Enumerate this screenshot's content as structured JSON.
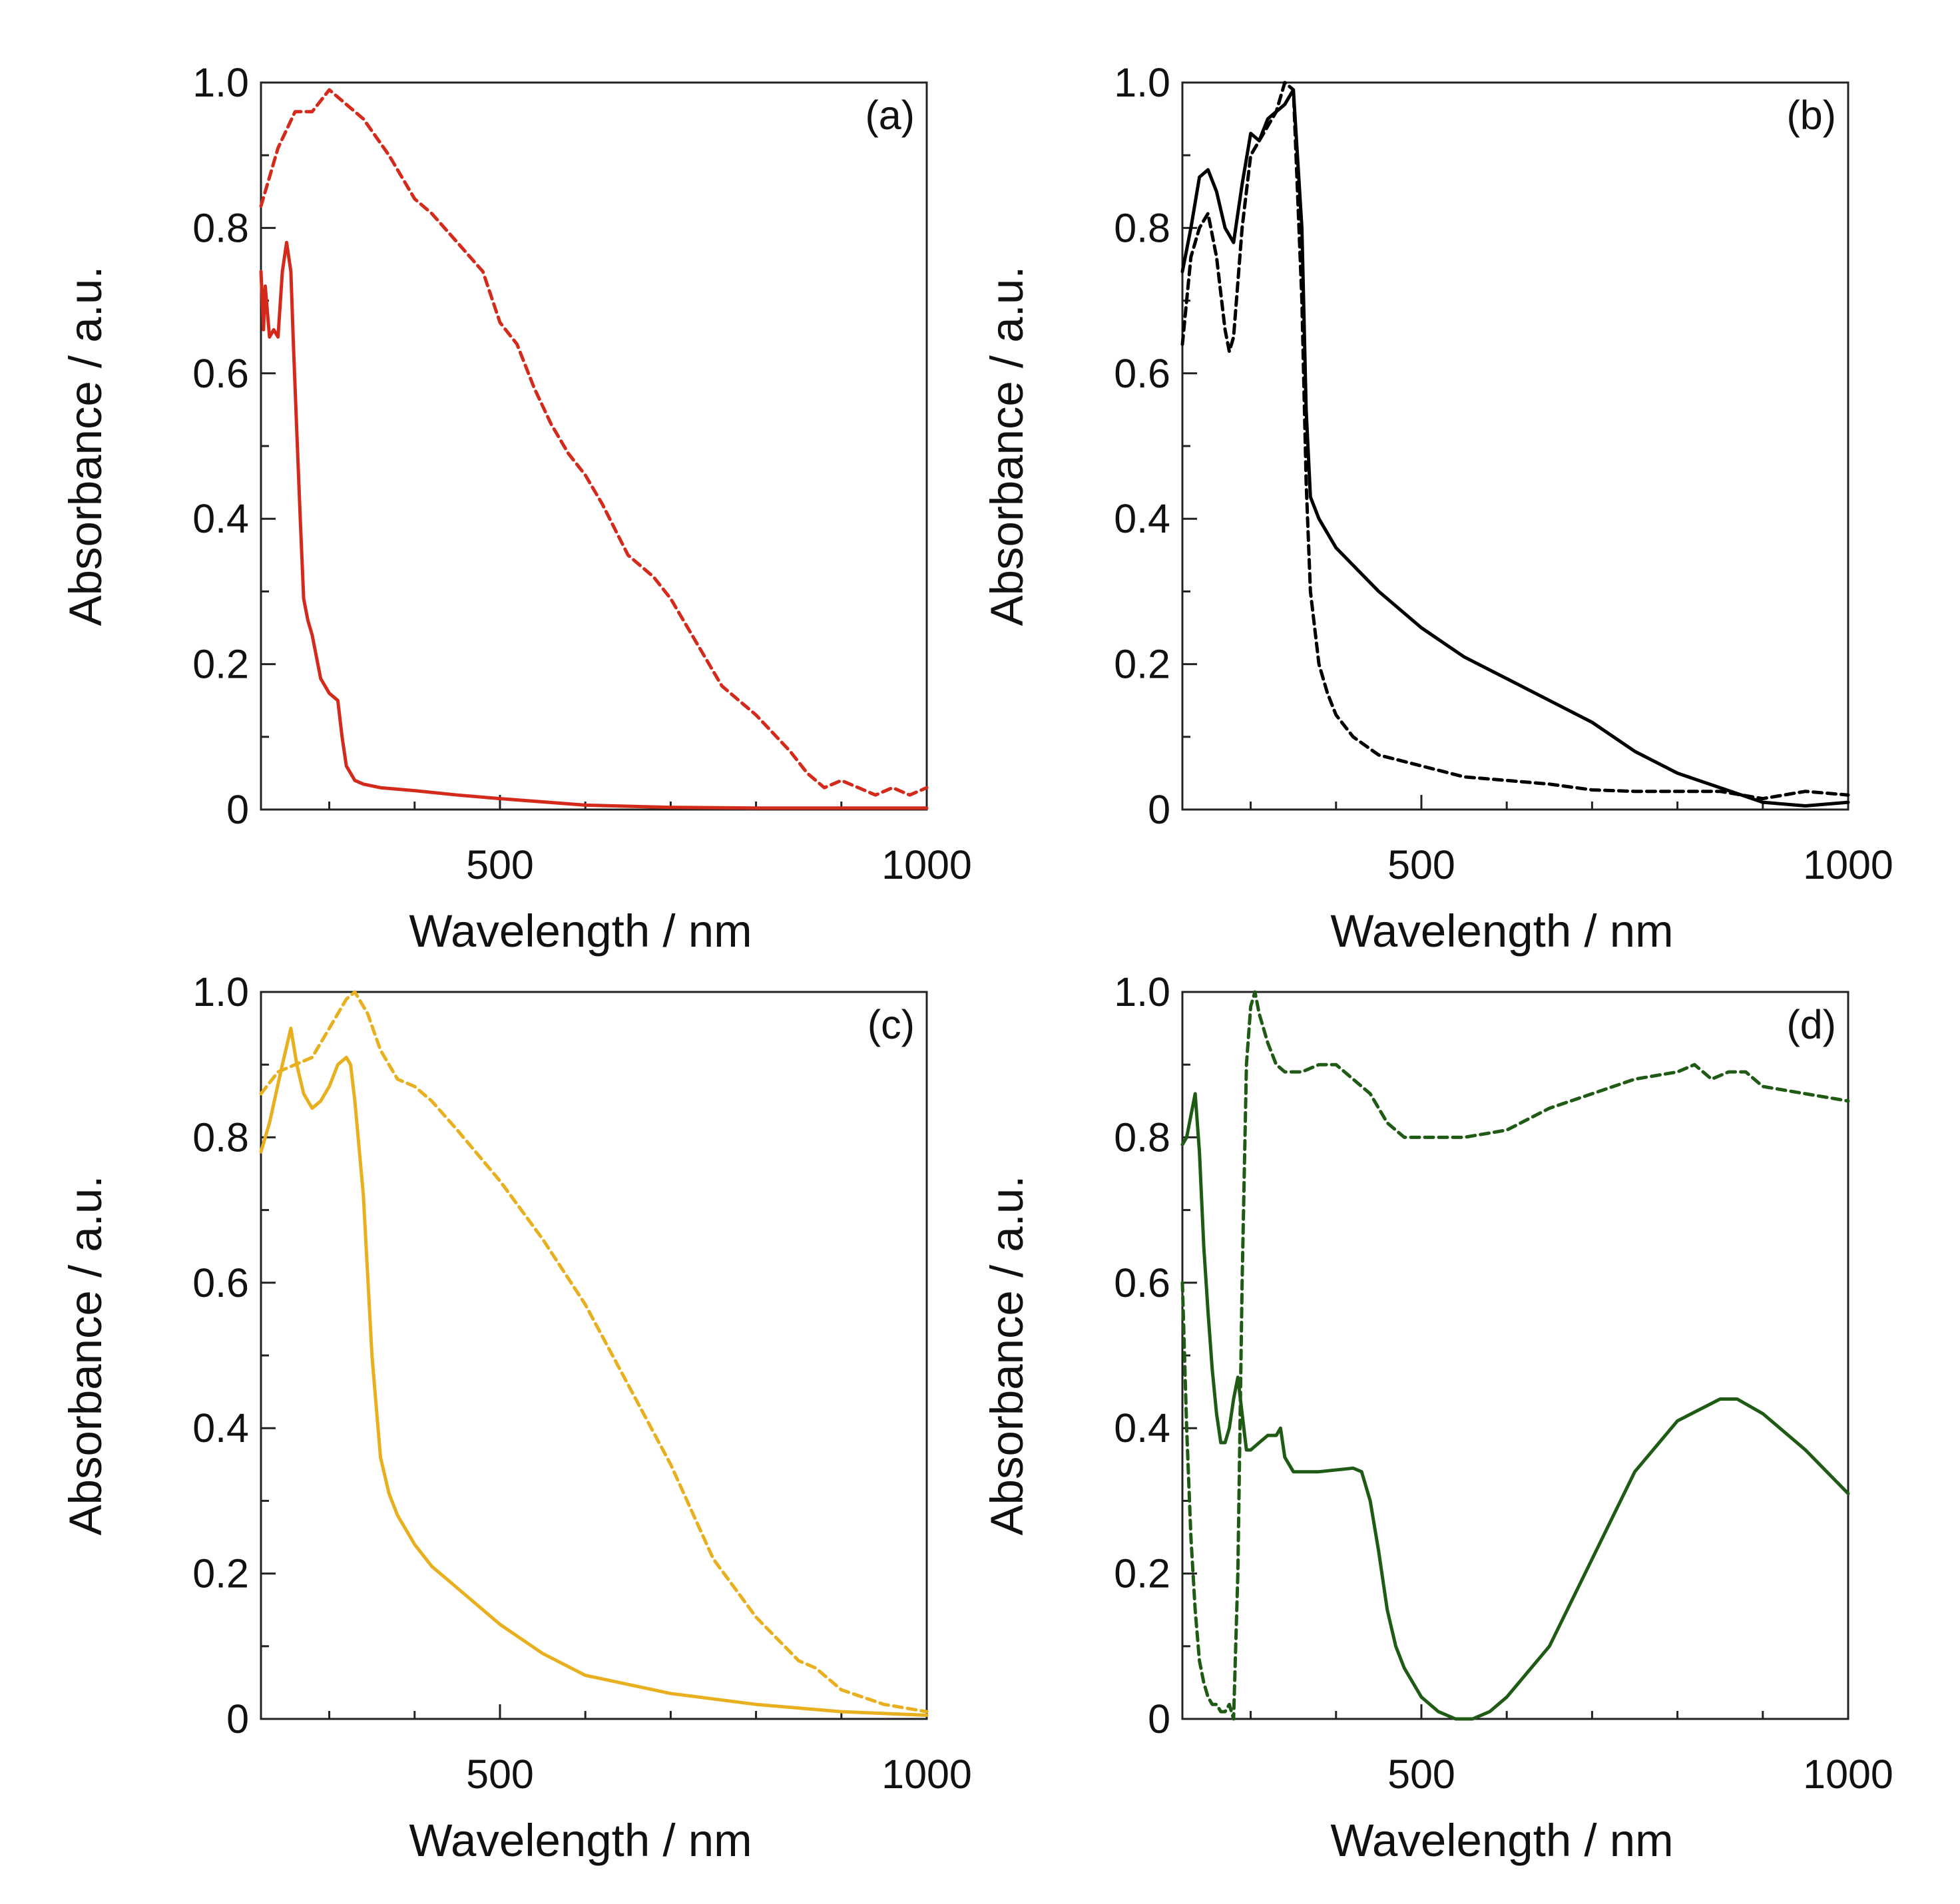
{
  "colors": {
    "a": "#d42a1c",
    "b": "#000000",
    "c": "#e8b01f",
    "d": "#1f5b14"
  },
  "chart_data": [
    {
      "type": "line",
      "panel_label": "(a)",
      "xlabel": "Wavelength / nm",
      "ylabel": "Absorbance / a.u.",
      "xlim": [
        220,
        1000
      ],
      "ylim": [
        0,
        1.0
      ],
      "xticks": [
        500,
        1000
      ],
      "yticks": [
        0,
        0.2,
        0.4,
        0.6,
        0.8,
        1.0
      ],
      "yticklabels": [
        "0",
        "0.2",
        "0.4",
        "0.6",
        "0.8",
        "1.0"
      ],
      "series": [
        {
          "style": "solid",
          "color": "#d42a1c",
          "x": [
            220,
            223,
            225,
            230,
            235,
            240,
            245,
            250,
            255,
            258,
            262,
            266,
            270,
            275,
            280,
            290,
            300,
            310,
            315,
            320,
            330,
            340,
            360,
            400,
            450,
            500,
            600,
            700,
            800,
            900,
            1000
          ],
          "y": [
            0.74,
            0.66,
            0.72,
            0.65,
            0.66,
            0.65,
            0.74,
            0.78,
            0.74,
            0.64,
            0.52,
            0.4,
            0.29,
            0.26,
            0.24,
            0.18,
            0.16,
            0.15,
            0.1,
            0.06,
            0.04,
            0.035,
            0.03,
            0.026,
            0.02,
            0.015,
            0.006,
            0.003,
            0.002,
            0.002,
            0.002
          ]
        },
        {
          "style": "dashed",
          "color": "#d42a1c",
          "x": [
            220,
            240,
            260,
            280,
            300,
            320,
            340,
            370,
            400,
            420,
            450,
            480,
            500,
            520,
            540,
            560,
            580,
            600,
            620,
            650,
            680,
            700,
            730,
            760,
            800,
            840,
            860,
            880,
            900,
            920,
            940,
            960,
            980,
            1000
          ],
          "y": [
            0.83,
            0.91,
            0.96,
            0.96,
            0.99,
            0.97,
            0.95,
            0.9,
            0.84,
            0.82,
            0.78,
            0.74,
            0.67,
            0.64,
            0.58,
            0.53,
            0.49,
            0.46,
            0.42,
            0.35,
            0.32,
            0.29,
            0.23,
            0.17,
            0.13,
            0.08,
            0.05,
            0.03,
            0.04,
            0.03,
            0.02,
            0.03,
            0.02,
            0.03
          ]
        }
      ]
    },
    {
      "type": "line",
      "panel_label": "(b)",
      "xlabel": "Wavelength / nm",
      "ylabel": "Absorbance / a.u.",
      "xlim": [
        220,
        1000
      ],
      "ylim": [
        0,
        1.0
      ],
      "xticks": [
        500,
        1000
      ],
      "yticks": [
        0,
        0.2,
        0.4,
        0.6,
        0.8,
        1.0
      ],
      "yticklabels": [
        "0",
        "0.2",
        "0.4",
        "0.6",
        "0.8",
        "1.0"
      ],
      "series": [
        {
          "style": "solid",
          "color": "#000000",
          "x": [
            220,
            230,
            240,
            250,
            260,
            270,
            280,
            290,
            300,
            310,
            320,
            330,
            340,
            350,
            360,
            365,
            370,
            380,
            400,
            450,
            500,
            550,
            600,
            650,
            700,
            750,
            800,
            850,
            900,
            950,
            1000
          ],
          "y": [
            0.74,
            0.8,
            0.87,
            0.88,
            0.85,
            0.8,
            0.78,
            0.86,
            0.93,
            0.92,
            0.95,
            0.96,
            0.97,
            0.99,
            0.8,
            0.55,
            0.43,
            0.4,
            0.36,
            0.3,
            0.25,
            0.21,
            0.18,
            0.15,
            0.12,
            0.08,
            0.05,
            0.03,
            0.01,
            0.005,
            0.01
          ]
        },
        {
          "style": "dashed",
          "color": "#000000",
          "x": [
            220,
            230,
            240,
            250,
            260,
            270,
            275,
            280,
            290,
            300,
            310,
            320,
            330,
            340,
            350,
            360,
            365,
            370,
            380,
            390,
            400,
            420,
            450,
            500,
            550,
            600,
            650,
            700,
            750,
            800,
            850,
            900,
            950,
            1000
          ],
          "y": [
            0.64,
            0.76,
            0.8,
            0.82,
            0.76,
            0.66,
            0.63,
            0.65,
            0.8,
            0.9,
            0.92,
            0.94,
            0.96,
            1.0,
            0.99,
            0.7,
            0.45,
            0.3,
            0.2,
            0.16,
            0.13,
            0.1,
            0.075,
            0.06,
            0.045,
            0.04,
            0.035,
            0.027,
            0.025,
            0.025,
            0.025,
            0.015,
            0.025,
            0.02
          ]
        }
      ]
    },
    {
      "type": "line",
      "panel_label": "(c)",
      "xlabel": "Wavelength / nm",
      "ylabel": "Absorbance / a.u.",
      "xlim": [
        220,
        1000
      ],
      "ylim": [
        0,
        1.0
      ],
      "xticks": [
        500,
        1000
      ],
      "yticks": [
        0,
        0.2,
        0.4,
        0.6,
        0.8,
        1.0
      ],
      "yticklabels": [
        "0",
        "0.2",
        "0.4",
        "0.6",
        "0.8",
        "1.0"
      ],
      "series": [
        {
          "style": "solid",
          "color": "#e8b01f",
          "x": [
            220,
            230,
            245,
            255,
            262,
            270,
            280,
            290,
            300,
            310,
            320,
            325,
            330,
            340,
            350,
            360,
            370,
            380,
            400,
            420,
            450,
            500,
            550,
            600,
            700,
            800,
            900,
            1000
          ],
          "y": [
            0.78,
            0.82,
            0.9,
            0.95,
            0.9,
            0.86,
            0.84,
            0.85,
            0.87,
            0.9,
            0.91,
            0.9,
            0.85,
            0.72,
            0.5,
            0.36,
            0.31,
            0.28,
            0.24,
            0.21,
            0.18,
            0.13,
            0.09,
            0.06,
            0.035,
            0.02,
            0.01,
            0.005
          ]
        },
        {
          "style": "dashed",
          "color": "#e8b01f",
          "x": [
            220,
            240,
            260,
            280,
            300,
            320,
            330,
            345,
            360,
            380,
            400,
            420,
            450,
            500,
            550,
            600,
            650,
            700,
            750,
            800,
            850,
            870,
            900,
            950,
            1000
          ],
          "y": [
            0.86,
            0.89,
            0.9,
            0.91,
            0.95,
            0.99,
            1.0,
            0.97,
            0.92,
            0.88,
            0.87,
            0.85,
            0.81,
            0.74,
            0.66,
            0.57,
            0.46,
            0.35,
            0.22,
            0.14,
            0.08,
            0.07,
            0.04,
            0.02,
            0.01
          ]
        }
      ]
    },
    {
      "type": "line",
      "panel_label": "(d)",
      "xlabel": "Wavelength / nm",
      "ylabel": "Absorbance / a.u.",
      "xlim": [
        220,
        1000
      ],
      "ylim": [
        0,
        1.0
      ],
      "xticks": [
        500,
        1000
      ],
      "yticks": [
        0,
        0.2,
        0.4,
        0.6,
        0.8,
        1.0
      ],
      "yticklabels": [
        "0",
        "0.2",
        "0.4",
        "0.6",
        "0.8",
        "1.0"
      ],
      "series": [
        {
          "style": "solid",
          "color": "#1f5b14",
          "x": [
            220,
            225,
            230,
            235,
            240,
            245,
            250,
            255,
            260,
            265,
            270,
            275,
            280,
            285,
            290,
            295,
            300,
            310,
            320,
            330,
            335,
            340,
            350,
            380,
            420,
            430,
            440,
            450,
            460,
            470,
            480,
            500,
            520,
            540,
            560,
            580,
            600,
            650,
            700,
            750,
            800,
            850,
            870,
            900,
            950,
            1000
          ],
          "y": [
            0.79,
            0.8,
            0.83,
            0.86,
            0.78,
            0.65,
            0.56,
            0.48,
            0.42,
            0.38,
            0.38,
            0.4,
            0.44,
            0.47,
            0.42,
            0.37,
            0.37,
            0.38,
            0.39,
            0.39,
            0.4,
            0.36,
            0.34,
            0.34,
            0.345,
            0.34,
            0.3,
            0.23,
            0.15,
            0.1,
            0.07,
            0.03,
            0.01,
            0.0,
            0.0,
            0.01,
            0.03,
            0.1,
            0.22,
            0.34,
            0.41,
            0.44,
            0.44,
            0.42,
            0.37,
            0.31
          ]
        },
        {
          "style": "dashed",
          "color": "#1f5b14",
          "x": [
            220,
            225,
            230,
            235,
            240,
            245,
            250,
            255,
            260,
            265,
            270,
            275,
            280,
            285,
            290,
            295,
            300,
            305,
            310,
            320,
            330,
            340,
            360,
            380,
            400,
            420,
            440,
            460,
            480,
            500,
            550,
            600,
            650,
            700,
            750,
            800,
            820,
            840,
            860,
            880,
            900,
            950,
            1000
          ],
          "y": [
            0.6,
            0.4,
            0.25,
            0.15,
            0.08,
            0.05,
            0.03,
            0.02,
            0.02,
            0.01,
            0.01,
            0.02,
            0.0,
            0.2,
            0.6,
            0.9,
            0.98,
            1.0,
            0.97,
            0.93,
            0.9,
            0.89,
            0.89,
            0.9,
            0.9,
            0.88,
            0.86,
            0.82,
            0.8,
            0.8,
            0.8,
            0.81,
            0.84,
            0.86,
            0.88,
            0.89,
            0.9,
            0.88,
            0.89,
            0.89,
            0.87,
            0.86,
            0.85
          ]
        }
      ]
    }
  ]
}
